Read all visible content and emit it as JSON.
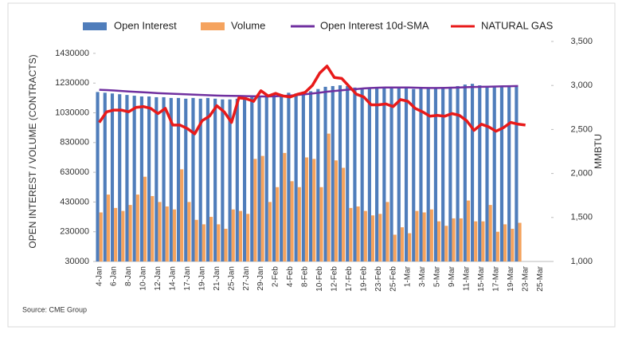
{
  "chart_data": {
    "type": "bar",
    "y_label": "OPEN INTEREST / VOLUME (CONTRACTS)",
    "y2_label": "MMBTU",
    "source": "Source: CME Group",
    "categories": [
      "4-Jan",
      null,
      "6-Jan",
      null,
      "8-Jan",
      null,
      "10-Jan",
      null,
      "12-Jan",
      null,
      "14-Jan",
      null,
      "17-Jan",
      null,
      "19-Jan",
      null,
      "21-Jan",
      null,
      "25-Jan",
      null,
      "27-Jan",
      null,
      "29-Jan",
      null,
      "2-Feb",
      null,
      "4-Feb",
      null,
      "8-Feb",
      null,
      "10-Feb",
      null,
      "12-Feb",
      null,
      "17-Feb",
      null,
      "19-Feb",
      null,
      "23-Feb",
      null,
      "25-Feb",
      null,
      "1-Mar",
      null,
      "3-Mar",
      null,
      "5-Mar",
      null,
      "9-Mar",
      null,
      "11-Mar",
      null,
      "15-Mar",
      null,
      "17-Mar",
      null,
      "19-Mar",
      null,
      "23-Mar",
      null,
      "25-Mar",
      null
    ],
    "series": [
      {
        "name": "Open Interest",
        "type": "bar",
        "color": "#4f7dbb",
        "values": [
          1170000,
          1165000,
          1160000,
          1155000,
          1150000,
          1145000,
          1140000,
          1140000,
          1135000,
          1135000,
          1130000,
          1130000,
          1125000,
          1130000,
          1125000,
          1130000,
          1125000,
          1120000,
          1120000,
          1125000,
          1130000,
          1135000,
          1140000,
          1150000,
          1160000,
          1155000,
          1165000,
          1160000,
          1170000,
          1175000,
          1190000,
          1205000,
          1210000,
          1215000,
          1210000,
          1200000,
          1195000,
          1200000,
          1195000,
          1200000,
          1195000,
          1200000,
          1195000,
          1190000,
          1195000,
          1200000,
          1195000,
          1200000,
          1205000,
          1210000,
          1220000,
          1225000,
          1215000,
          1210000,
          1205000,
          1210000,
          1215000,
          1210000,
          null,
          null,
          null,
          null
        ]
      },
      {
        "name": "Volume",
        "type": "bar",
        "color": "#f5a35e",
        "values": [
          360000,
          480000,
          390000,
          370000,
          410000,
          480000,
          600000,
          470000,
          430000,
          400000,
          380000,
          650000,
          430000,
          310000,
          280000,
          330000,
          280000,
          250000,
          380000,
          370000,
          350000,
          720000,
          740000,
          430000,
          530000,
          760000,
          570000,
          530000,
          730000,
          720000,
          530000,
          890000,
          710000,
          660000,
          390000,
          400000,
          370000,
          340000,
          350000,
          430000,
          210000,
          260000,
          220000,
          370000,
          360000,
          380000,
          300000,
          270000,
          320000,
          320000,
          440000,
          300000,
          300000,
          410000,
          230000,
          280000,
          250000,
          290000,
          null,
          null,
          null,
          null
        ]
      },
      {
        "name": "Open Interest 10d-SMA",
        "type": "line",
        "color": "#7030a0",
        "values": [
          1185000,
          1183000,
          1180000,
          1177000,
          1174000,
          1171000,
          1168000,
          1165000,
          1162000,
          1160000,
          1158000,
          1156000,
          1154000,
          1152000,
          1150000,
          1148000,
          1146000,
          1145000,
          1144000,
          1143000,
          1142000,
          1141000,
          1140000,
          1140000,
          1141000,
          1143000,
          1146000,
          1150000,
          1155000,
          1160000,
          1166000,
          1172000,
          1177000,
          1182000,
          1186000,
          1190000,
          1194000,
          1197000,
          1199000,
          1200000,
          1200000,
          1200000,
          1200000,
          1199000,
          1198000,
          1197000,
          1197000,
          1198000,
          1199000,
          1200000,
          1202000,
          1204000,
          1205000,
          1206000,
          1207000,
          1208000,
          1209000,
          1210000,
          null,
          null,
          null,
          null
        ]
      },
      {
        "name": "NATURAL GAS",
        "type": "line",
        "axis": "y2",
        "color": "#e81a1a",
        "values": [
          2580,
          2700,
          2720,
          2720,
          2700,
          2750,
          2760,
          2740,
          2680,
          2740,
          2550,
          2550,
          2510,
          2450,
          2600,
          2650,
          2770,
          2700,
          2580,
          2860,
          2850,
          2820,
          2940,
          2880,
          2910,
          2880,
          2870,
          2900,
          2920,
          3000,
          3140,
          3220,
          3090,
          3080,
          2990,
          2900,
          2870,
          2780,
          2780,
          2790,
          2760,
          2840,
          2820,
          2740,
          2700,
          2650,
          2660,
          2650,
          2680,
          2660,
          2600,
          2490,
          2560,
          2530,
          2480,
          2520,
          2580,
          2560,
          2550,
          null,
          null,
          null
        ]
      }
    ],
    "ylim": [
      30000,
      1510000
    ],
    "yticks": [
      30000,
      230000,
      430000,
      630000,
      830000,
      1030000,
      1230000,
      1430000
    ],
    "y2lim": [
      1000,
      3500
    ],
    "y2ticks": [
      {
        "value": 1000,
        "label": "1,000"
      },
      {
        "value": 1500,
        "label": "1,500"
      },
      {
        "value": 2000,
        "label": "2,000"
      },
      {
        "value": 2500,
        "label": "2,500"
      },
      {
        "value": 3000,
        "label": "3,000"
      },
      {
        "value": 3500,
        "label": "3,500"
      }
    ],
    "legend": "top"
  }
}
